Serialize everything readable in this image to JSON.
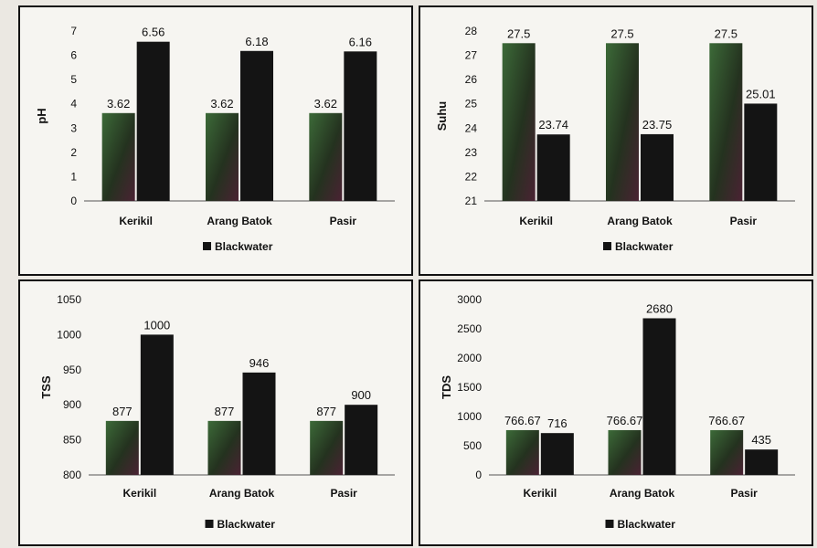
{
  "chart_data": [
    {
      "type": "bar",
      "ylabel": "pH",
      "categories": [
        "Kerikil",
        "Arang Batok",
        "Pasir"
      ],
      "series": [
        {
          "values": [
            3.62,
            3.62,
            3.62
          ]
        },
        {
          "name": "Blackwater",
          "values": [
            6.56,
            6.18,
            6.16
          ]
        }
      ],
      "data_labels": [
        [
          "3.62",
          "3.62",
          "3.62"
        ],
        [
          "6.56",
          "6.18",
          "6.16"
        ]
      ],
      "ylim": [
        0,
        7
      ],
      "yticks": [
        0,
        1,
        2,
        3,
        4,
        5,
        6,
        7
      ],
      "legend": "bottom",
      "grid": false
    },
    {
      "type": "bar",
      "ylabel": "Suhu",
      "categories": [
        "Kerikil",
        "Arang Batok",
        "Pasir"
      ],
      "series": [
        {
          "values": [
            27.5,
            27.5,
            27.5
          ]
        },
        {
          "name": "Blackwater",
          "values": [
            23.74,
            23.75,
            25.01
          ]
        }
      ],
      "data_labels": [
        [
          "27.5",
          "27.5",
          "27.5"
        ],
        [
          "23.74",
          "23.75",
          "25.01"
        ]
      ],
      "ylim": [
        21,
        28
      ],
      "yticks": [
        21,
        22,
        23,
        24,
        25,
        26,
        27,
        28
      ],
      "legend": "bottom",
      "grid": false
    },
    {
      "type": "bar",
      "ylabel": "TSS",
      "categories": [
        "Kerikil",
        "Arang Batok",
        "Pasir"
      ],
      "series": [
        {
          "values": [
            877,
            877,
            877
          ]
        },
        {
          "name": "Blackwater",
          "values": [
            1000,
            946,
            900
          ]
        }
      ],
      "data_labels": [
        [
          "877",
          "877",
          "877"
        ],
        [
          "1000",
          "946",
          "900"
        ]
      ],
      "ylim": [
        800,
        1050
      ],
      "yticks": [
        800,
        850,
        900,
        950,
        1000,
        1050
      ],
      "legend": "bottom",
      "grid": false
    },
    {
      "type": "bar",
      "ylabel": "TDS",
      "categories": [
        "Kerikil",
        "Arang Batok",
        "Pasir"
      ],
      "series": [
        {
          "values": [
            766.67,
            766.67,
            766.67
          ]
        },
        {
          "name": "Blackwater",
          "values": [
            716,
            2680,
            435
          ]
        }
      ],
      "data_labels": [
        [
          "766.67",
          "766.67",
          "766.67"
        ],
        [
          "716",
          "2680",
          "435"
        ]
      ],
      "ylim": [
        0,
        3000
      ],
      "yticks": [
        0,
        500,
        1000,
        1500,
        2000,
        2500,
        3000
      ],
      "legend": "bottom",
      "grid": false
    }
  ],
  "colors": {
    "series1": [
      "#2f4a2c",
      "#2e4630",
      "#2c3e2a"
    ],
    "series2": "#141414",
    "pasir_series1_alt": "#3a2030"
  }
}
